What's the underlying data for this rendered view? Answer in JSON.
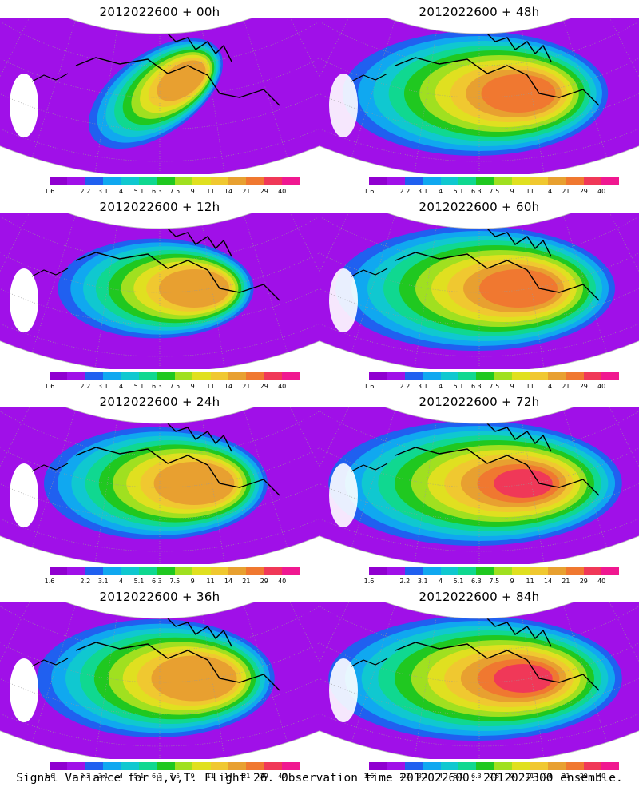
{
  "panels": [
    {
      "title": "2012022600  + 00h",
      "lead_hours": 0
    },
    {
      "title": "2012022600  + 48h",
      "lead_hours": 48
    },
    {
      "title": "2012022600  + 12h",
      "lead_hours": 12
    },
    {
      "title": "2012022600  + 60h",
      "lead_hours": 60
    },
    {
      "title": "2012022600  + 24h",
      "lead_hours": 24
    },
    {
      "title": "2012022600  + 72h",
      "lead_hours": 72
    },
    {
      "title": "2012022600  + 36h",
      "lead_hours": 36
    },
    {
      "title": "2012022600  + 84h",
      "lead_hours": 84
    }
  ],
  "colorbar": {
    "colors": [
      "#9000d0",
      "#a010e8",
      "#2060f0",
      "#10a8f0",
      "#10c8d0",
      "#10d890",
      "#20c820",
      "#a0e020",
      "#e0e020",
      "#f0c830",
      "#e8a030",
      "#f07830",
      "#f03858",
      "#f01890"
    ],
    "labels": [
      "1.6",
      "2.2",
      "3.1",
      "4",
      "5.1",
      "6.3",
      "7.5",
      "9",
      "11",
      "14",
      "21",
      "29",
      "40"
    ]
  },
  "caption": "Signal Variance for u,v,T. Flight 26. Observation time 2012022600. 2012022300 ensemble."
}
